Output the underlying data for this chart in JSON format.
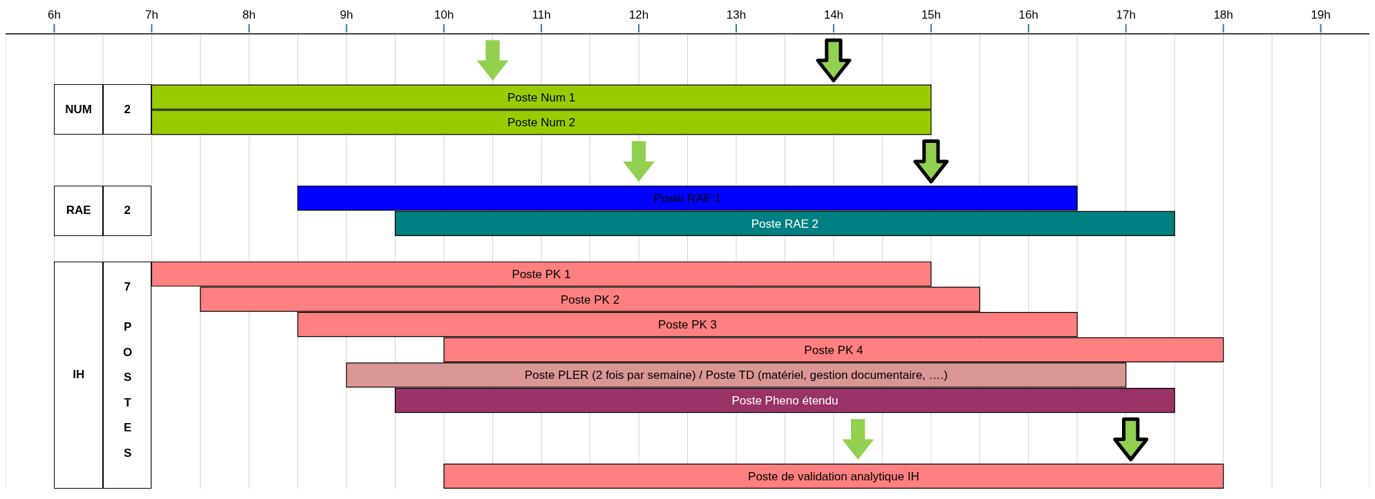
{
  "chart_data": {
    "type": "bar",
    "orientation": "horizontal",
    "categories": [
      null,
      null,
      "Poste Num 1",
      "Poste Num 2",
      null,
      null,
      "Poste RAE 1",
      "Poste RAE 2",
      null,
      "Poste PK 1",
      "Poste PK 2",
      "Poste PK 3",
      "Poste PK 4",
      "Poste PLER (2 fois par semaine) / Poste TD (matériel, gestion documentaire, ….)",
      "Poste Pheno étendu",
      null,
      null,
      "Poste de validation analytique  IH"
    ],
    "base": [
      null,
      null,
      7,
      7,
      null,
      null,
      8.5,
      9.5,
      null,
      7,
      7.5,
      8.5,
      10,
      9,
      9.5,
      null,
      null,
      10
    ],
    "values": [
      null,
      null,
      8,
      8,
      null,
      null,
      8,
      8,
      null,
      8,
      8,
      8,
      8,
      8,
      8,
      null,
      null,
      8
    ],
    "colors": [
      null,
      null,
      "#99cc00",
      "#99cc00",
      null,
      null,
      "#0000ff",
      "#008080",
      null,
      "#ff8080",
      "#ff8080",
      "#ff8080",
      "#ff8080",
      "#da9694",
      "#993366",
      null,
      null,
      "#ff8080"
    ],
    "xlim": [
      5.5,
      19.5
    ],
    "xticks": [
      {
        "value": 6,
        "label": "6h"
      },
      {
        "value": 6.5,
        "label": null
      },
      {
        "value": 7,
        "label": "7h"
      },
      {
        "value": 7.5,
        "label": null
      },
      {
        "value": 8,
        "label": "8h"
      },
      {
        "value": 8.5,
        "label": null
      },
      {
        "value": 9,
        "label": "9h"
      },
      {
        "value": 9.5,
        "label": null
      },
      {
        "value": 10,
        "label": "10h"
      },
      {
        "value": 10.5,
        "label": null
      },
      {
        "value": 11,
        "label": "11h"
      },
      {
        "value": 11.5,
        "label": null
      },
      {
        "value": 12,
        "label": "12h"
      },
      {
        "value": 12.5,
        "label": null
      },
      {
        "value": 13,
        "label": "13h"
      },
      {
        "value": 13.5,
        "label": null
      },
      {
        "value": 14,
        "label": "14h"
      },
      {
        "value": 14.5,
        "label": null
      },
      {
        "value": 15,
        "label": "15h"
      },
      {
        "value": 15.5,
        "label": null
      },
      {
        "value": 16,
        "label": "16h"
      },
      {
        "value": 16.5,
        "label": null
      },
      {
        "value": 17,
        "label": "17h"
      },
      {
        "value": 17.5,
        "label": null
      },
      {
        "value": 18,
        "label": "18h"
      },
      {
        "value": 18.5,
        "label": null
      },
      {
        "value": 19,
        "label": "19h"
      }
    ],
    "grid": "x",
    "tick_labels": "x",
    "legend": false,
    "annotations": [
      "NUM",
      "2",
      "RAE",
      "2",
      "IH",
      "7",
      "POSTES"
    ]
  }
}
